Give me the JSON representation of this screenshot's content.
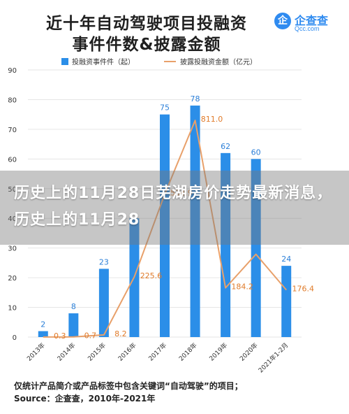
{
  "title": {
    "line1": "近十年自动驾驶项目投融资",
    "line2": "事件件数&披露金额"
  },
  "logo": {
    "glyph": "企",
    "name": "企查查",
    "sub": "Qcc.com"
  },
  "overlay_text": "历史上的11月28日芜湖房价走势最新消息，历史上的11月28",
  "footnote": {
    "line1": "仅统计产品简介或产品标签中包含关键词“自动驾驶”的项目；",
    "line2": "Source：企查查，2010年-2021年"
  },
  "colors": {
    "bar": "#2b8ee8",
    "line": "#e8a06a",
    "line_label": "#e07b2a",
    "bar_label": "#2b7fd8",
    "grid": "#e6e6e6",
    "axis_text": "#333333"
  },
  "chart_data": {
    "type": "bar",
    "categories": [
      "2013年",
      "2014年",
      "2015年",
      "2016年",
      "2017年",
      "2018年",
      "2019年",
      "2020年",
      "2021年1-2月"
    ],
    "yticks": [
      "0",
      "10",
      "20",
      "30",
      "40",
      "50",
      "60",
      "70",
      "80",
      "90"
    ],
    "ylim": [
      0,
      90
    ],
    "y2lim": [
      0,
      1000
    ],
    "legend_position": "top-left",
    "series": [
      {
        "name": "投融资事件件（起）",
        "kind": "bar",
        "values": [
          2,
          8,
          23,
          40,
          75,
          78,
          62,
          60,
          24
        ],
        "labels": [
          "2",
          "8",
          "23",
          "",
          "75",
          "78",
          "62",
          "60",
          "24"
        ]
      },
      {
        "name": "披露投融资金额（亿元）",
        "kind": "line",
        "values": [
          0.3,
          0.7,
          8.2,
          225.6,
          534.9,
          811.0,
          184.2,
          310,
          176.4
        ],
        "labels": [
          "0.3",
          "0.7",
          "8.2",
          "225.6",
          "534.9",
          "811.0",
          "184.2",
          "",
          "176.4"
        ]
      }
    ]
  }
}
